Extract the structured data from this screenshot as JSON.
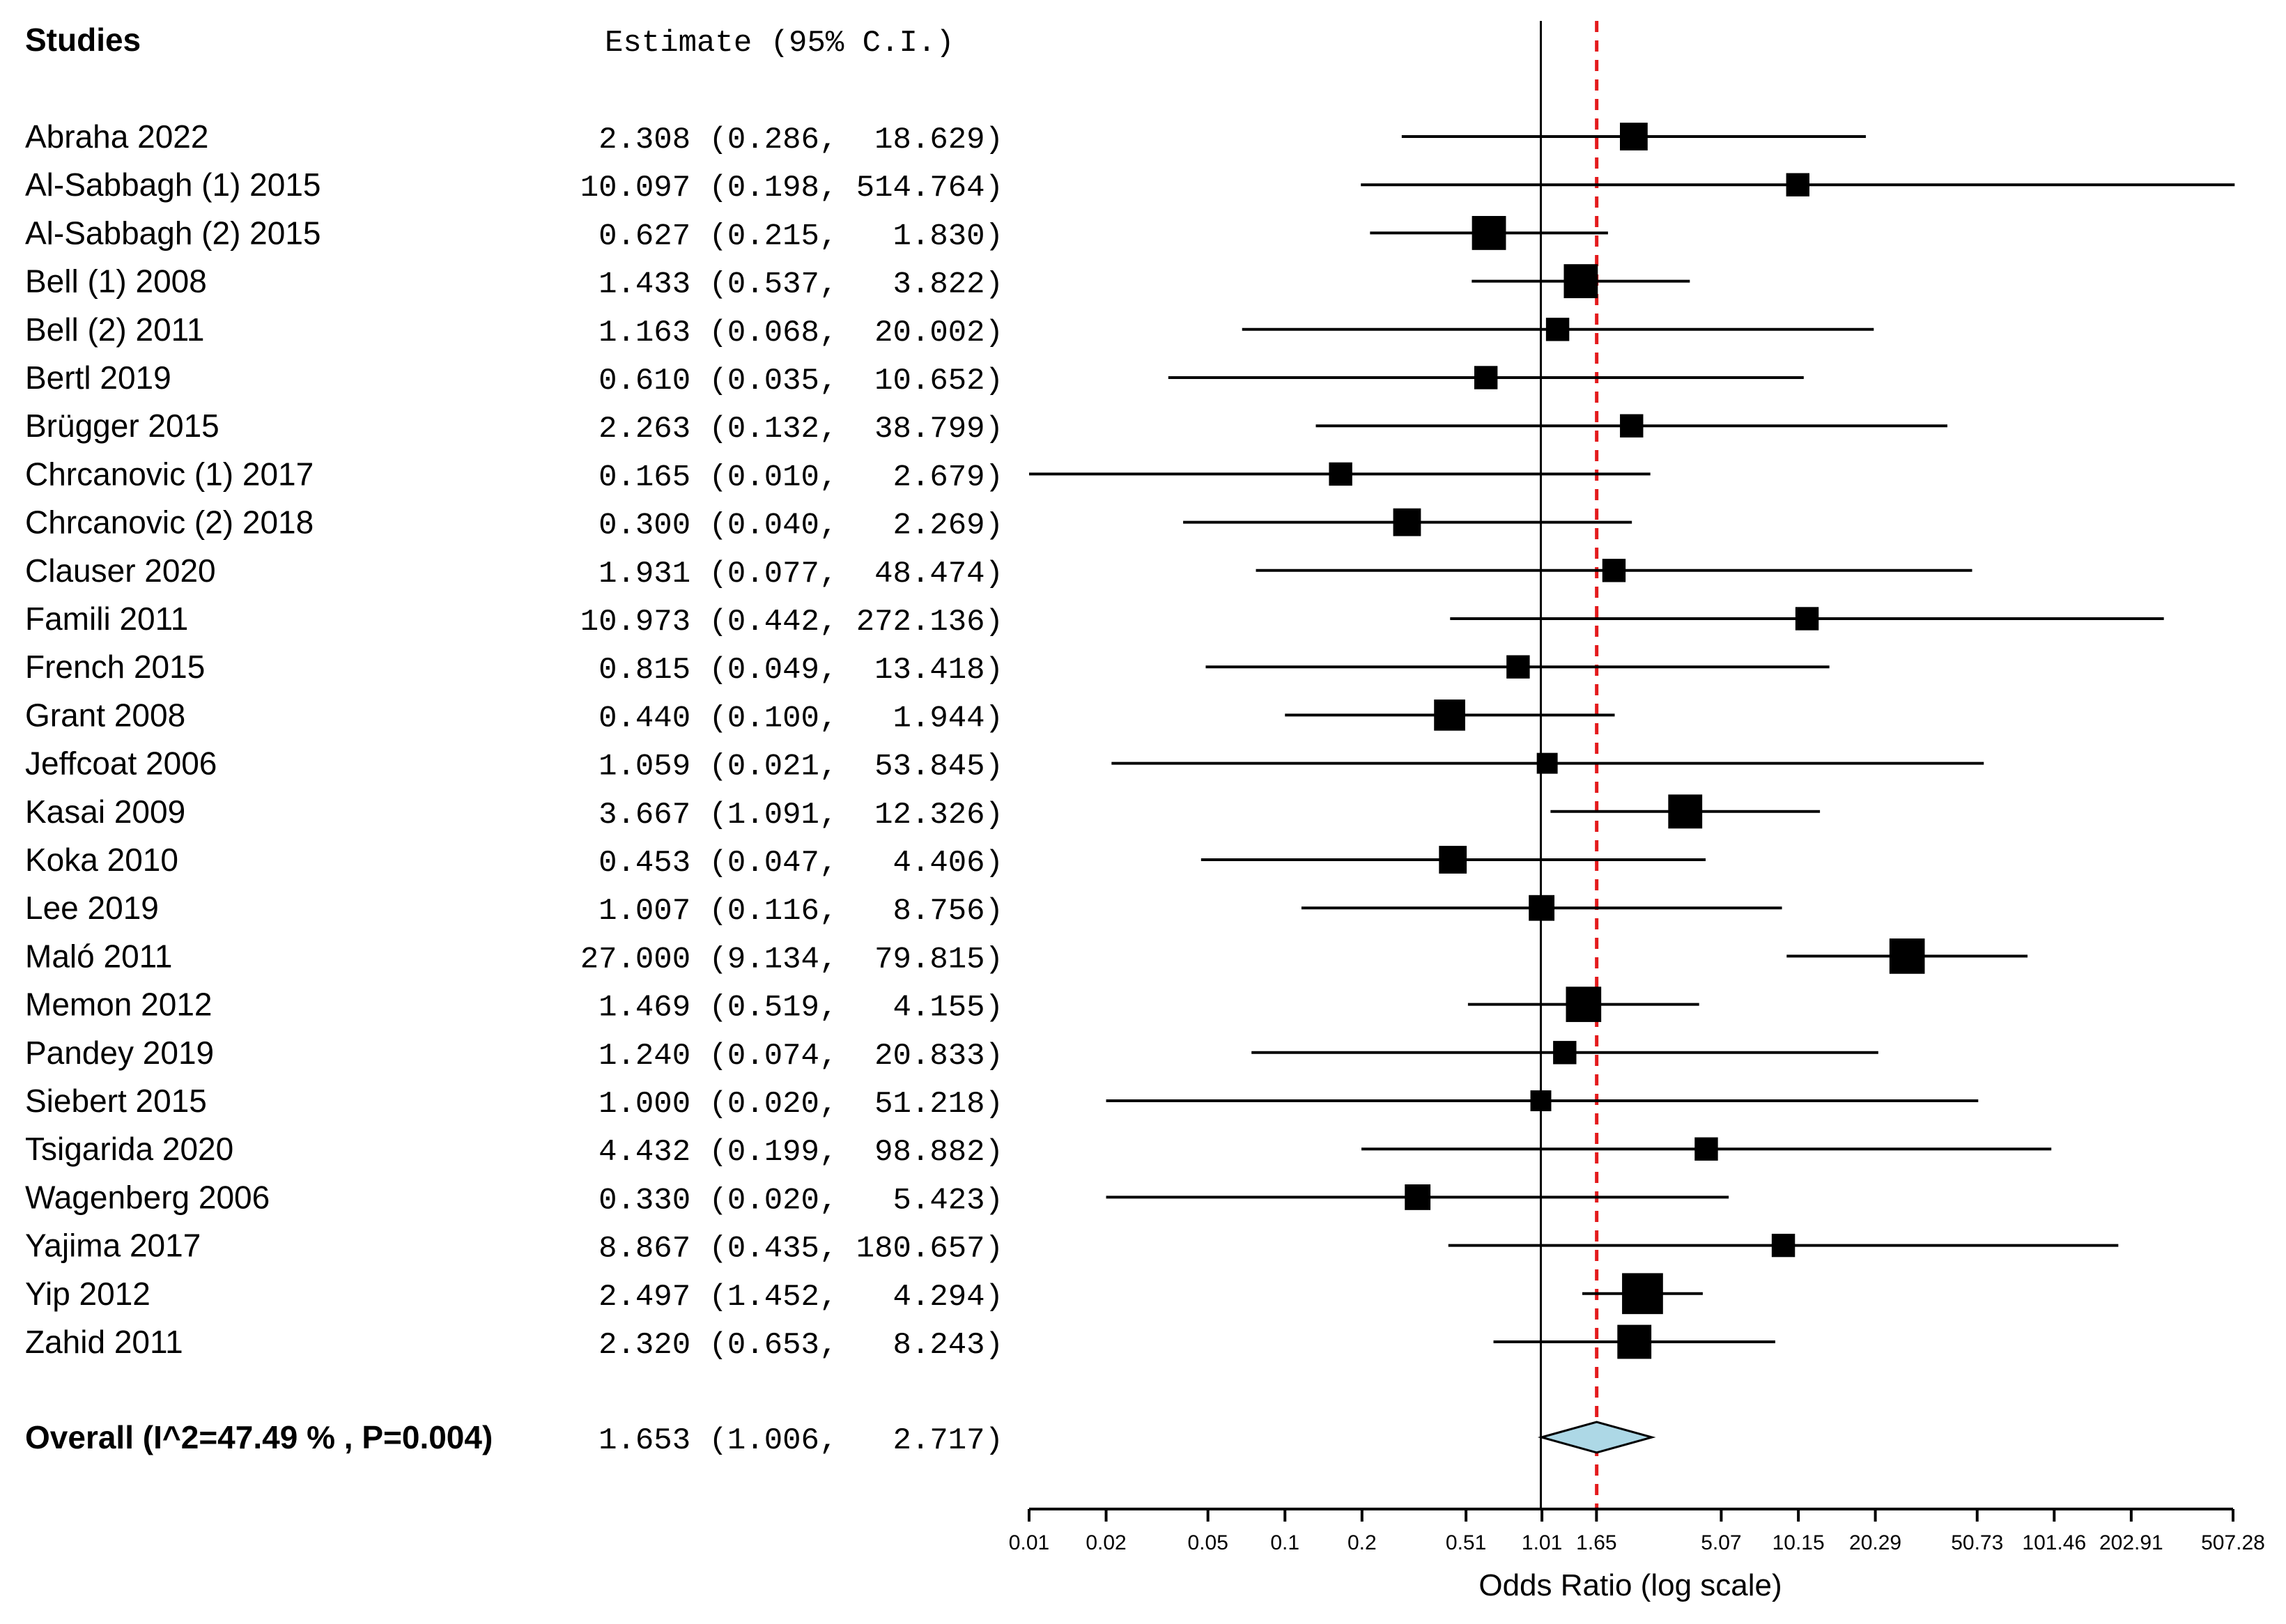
{
  "chart_data": {
    "type": "forest",
    "headers": {
      "studies": "Studies",
      "estimate": "Estimate (95% C.I.)"
    },
    "studies": [
      {
        "name": "Abraha 2022",
        "est": "2.308",
        "lo": "0.286",
        "hi": "18.629",
        "weight": 2
      },
      {
        "name": "Al-Sabbagh (1) 2015",
        "est": "10.097",
        "lo": "0.198",
        "hi": "514.764",
        "weight": 1
      },
      {
        "name": "Al-Sabbagh (2) 2015",
        "est": "0.627",
        "lo": "0.215",
        "hi": "1.830",
        "weight": 4
      },
      {
        "name": "Bell (1) 2008",
        "est": "1.433",
        "lo": "0.537",
        "hi": "3.822",
        "weight": 4
      },
      {
        "name": "Bell (2) 2011",
        "est": "1.163",
        "lo": "0.068",
        "hi": "20.002",
        "weight": 1
      },
      {
        "name": "Bertl 2019",
        "est": "0.610",
        "lo": "0.035",
        "hi": "10.652",
        "weight": 1
      },
      {
        "name": "Brügger 2015",
        "est": "2.263",
        "lo": "0.132",
        "hi": "38.799",
        "weight": 1
      },
      {
        "name": "Chrcanovic (1) 2017",
        "est": "0.165",
        "lo": "0.010",
        "hi": "2.679",
        "weight": 1
      },
      {
        "name": "Chrcanovic (2) 2018",
        "est": "0.300",
        "lo": "0.040",
        "hi": "2.269",
        "weight": 2
      },
      {
        "name": "Clauser 2020",
        "est": "1.931",
        "lo": "0.077",
        "hi": "48.474",
        "weight": 1
      },
      {
        "name": "Famili 2011",
        "est": "10.973",
        "lo": "0.442",
        "hi": "272.136",
        "weight": 1
      },
      {
        "name": "French 2015",
        "est": "0.815",
        "lo": "0.049",
        "hi": "13.418",
        "weight": 1
      },
      {
        "name": "Grant 2008",
        "est": "0.440",
        "lo": "0.100",
        "hi": "1.944",
        "weight": 3
      },
      {
        "name": "Jeffcoat 2006",
        "est": "1.059",
        "lo": "0.021",
        "hi": "53.845",
        "weight": 0.6
      },
      {
        "name": "Kasai 2009",
        "est": "3.667",
        "lo": "1.091",
        "hi": "12.326",
        "weight": 4
      },
      {
        "name": "Koka 2010",
        "est": "0.453",
        "lo": "0.047",
        "hi": "4.406",
        "weight": 2
      },
      {
        "name": "Lee 2019",
        "est": "1.007",
        "lo": "0.116",
        "hi": "8.756",
        "weight": 1.5
      },
      {
        "name": "Maló 2011",
        "est": "27.000",
        "lo": "9.134",
        "hi": "79.815",
        "weight": 4.5
      },
      {
        "name": "Memon 2012",
        "est": "1.469",
        "lo": "0.519",
        "hi": "4.155",
        "weight": 4.5
      },
      {
        "name": "Pandey  2019",
        "est": "1.240",
        "lo": "0.074",
        "hi": "20.833",
        "weight": 1
      },
      {
        "name": "Siebert 2015",
        "est": "1.000",
        "lo": "0.020",
        "hi": "51.218",
        "weight": 0.6
      },
      {
        "name": "Tsigarida 2020",
        "est": "4.432",
        "lo": "0.199",
        "hi": "98.882",
        "weight": 1
      },
      {
        "name": "Wagenberg 2006",
        "est": "0.330",
        "lo": "0.020",
        "hi": "5.423",
        "weight": 1.5
      },
      {
        "name": "Yajima 2017",
        "est": "8.867",
        "lo": "0.435",
        "hi": "180.657",
        "weight": 1
      },
      {
        "name": "Yip 2012",
        "est": "2.497",
        "lo": "1.452",
        "hi": "4.294",
        "weight": 7
      },
      {
        "name": "Zahid 2011",
        "est": "2.320",
        "lo": "0.653",
        "hi": "8.243",
        "weight": 4
      }
    ],
    "overall": {
      "label": "Overall (I^2=47.49 % , P=0.004)",
      "est": "1.653",
      "lo": "1.006",
      "hi": "2.717"
    },
    "x_ticks": [
      "0.01",
      "0.02",
      "0.05",
      "0.1",
      "0.2",
      "0.51",
      "1.01",
      "1.65",
      "5.07",
      "10.15",
      "20.29",
      "50.73",
      "101.46",
      "202.91",
      "507.28"
    ],
    "xlim": [
      0.01,
      507.28
    ],
    "null_line": 1,
    "xlabel": "Odds Ratio (log scale)",
    "colors": {
      "reference_line": "#e41a1c",
      "diamond_fill": "#add8e6",
      "marks": "#000000"
    }
  }
}
